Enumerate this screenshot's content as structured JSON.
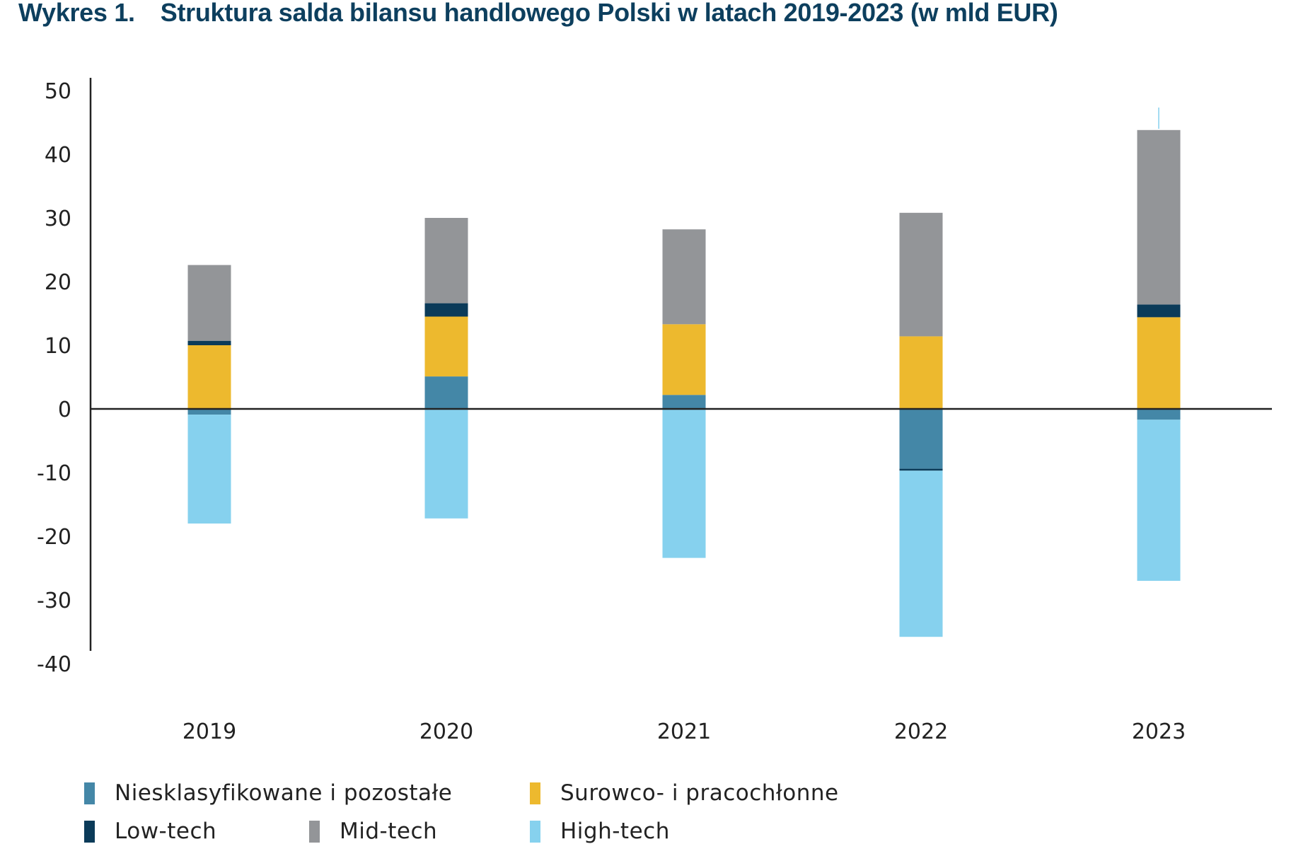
{
  "title": {
    "number": "Wykres 1.",
    "text": "Struktura salda bilansu handlowego Polski w latach 2019-2023 (w mld EUR)"
  },
  "colors": {
    "title": "#0d3f5e",
    "Niesklasyfikowane i pozostałe": "#4487a7",
    "Surowco- i pracochłonne": "#edb92e",
    "Low-tech": "#0b3b59",
    "Mid-tech": "#939598",
    "High-tech": "#86d1ee",
    "axis": "#222222"
  },
  "legend": [
    {
      "label": "Niesklasyfikowane i pozostałe",
      "color": "#4487a7"
    },
    {
      "label": "Surowco- i pracochłonne",
      "color": "#edb92e"
    },
    {
      "label": "Low-tech",
      "color": "#0b3b59"
    },
    {
      "label": "Mid-tech",
      "color": "#939598"
    },
    {
      "label": "High-tech",
      "color": "#86d1ee"
    }
  ],
  "chart_data": {
    "type": "bar",
    "stacked": true,
    "title": "Wykres 1. Struktura salda bilansu handlowego Polski w latach 2019-2023 (w mld EUR)",
    "xlabel": "",
    "ylabel": "",
    "categories": [
      "2019",
      "2020",
      "2021",
      "2022",
      "2023"
    ],
    "ylim": [
      -40,
      50
    ],
    "yticks": [
      50,
      40,
      30,
      20,
      10,
      0,
      -10,
      -20,
      -30,
      -40
    ],
    "grid": false,
    "legend_position": "bottom",
    "series": [
      {
        "name": "Niesklasyfikowane i pozostałe",
        "values": [
          -0.9,
          5.1,
          2.2,
          -9.4,
          -1.7
        ]
      },
      {
        "name": "Surowco- i pracochłonne",
        "values": [
          10.0,
          9.4,
          11.1,
          11.4,
          14.4
        ]
      },
      {
        "name": "Low-tech",
        "values": [
          0.7,
          2.1,
          0.0,
          -0.3,
          2.0
        ]
      },
      {
        "name": "Mid-tech",
        "values": [
          11.9,
          13.4,
          14.9,
          19.4,
          27.4
        ]
      },
      {
        "name": "High-tech",
        "values": [
          -17.1,
          -17.2,
          -23.4,
          -26.1,
          -25.3
        ]
      }
    ]
  }
}
